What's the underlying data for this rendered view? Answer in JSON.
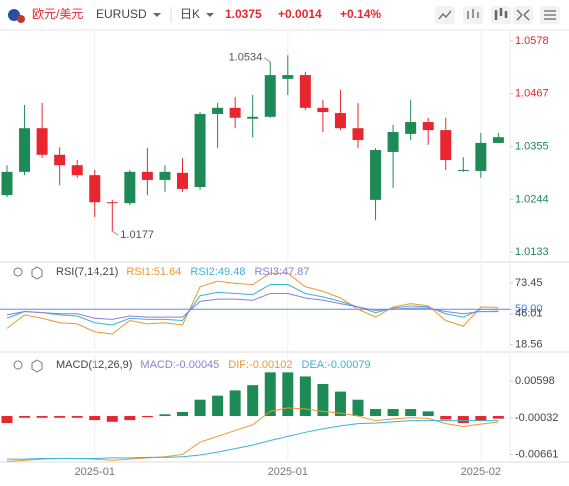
{
  "header": {
    "pair": "欧元/美元",
    "symbol": "EURUSD",
    "period": "日K",
    "price": "1.0375",
    "change": "+0.0014",
    "change_pct": "+0.14%"
  },
  "chart_data": [
    {
      "type": "candlestick",
      "up_color": "#1e8a55",
      "down_color": "#e8262f",
      "categories": [
        null,
        null,
        null,
        null,
        null,
        "2025-01",
        null,
        null,
        null,
        null,
        null,
        null,
        null,
        null,
        null,
        null,
        "2025-01",
        null,
        null,
        null,
        null,
        null,
        null,
        null,
        null,
        null,
        null,
        "2025-02",
        null
      ],
      "open": [
        1.0253,
        1.0302,
        1.0394,
        1.0338,
        1.0316,
        1.0295,
        1.0238,
        1.0236,
        1.0302,
        1.0285,
        1.03,
        1.027,
        1.0424,
        1.0437,
        1.0414,
        1.0418,
        1.0498,
        1.0506,
        1.0437,
        1.0426,
        1.0394,
        1.0243,
        1.0344,
        1.0382,
        1.0407,
        1.039,
        1.0304,
        1.0304,
        1.0363
      ],
      "high": [
        1.0316,
        1.0443,
        1.0447,
        1.0354,
        1.0327,
        1.0306,
        1.0243,
        1.0306,
        1.0352,
        1.0316,
        1.0331,
        1.0428,
        1.0447,
        1.046,
        1.0464,
        1.0534,
        1.0548,
        1.0513,
        1.0454,
        1.0475,
        1.0447,
        1.0352,
        1.0401,
        1.0454,
        1.0416,
        1.0416,
        1.0333,
        1.0384,
        1.0384
      ],
      "low": [
        1.0249,
        1.0295,
        1.0331,
        1.0274,
        1.0289,
        1.0207,
        1.0177,
        1.0232,
        1.0253,
        1.026,
        1.026,
        1.0264,
        1.0352,
        1.0394,
        1.0375,
        1.0416,
        1.0464,
        1.0432,
        1.0386,
        1.039,
        1.0352,
        1.02,
        1.0268,
        1.0369,
        1.0359,
        1.0306,
        1.0302,
        1.0289,
        1.0363
      ],
      "close": [
        1.0302,
        1.0394,
        1.0338,
        1.0316,
        1.0295,
        1.0238,
        1.0236,
        1.0302,
        1.0285,
        1.0302,
        1.0266,
        1.0424,
        1.0437,
        1.0416,
        1.0418,
        1.0506,
        1.0506,
        1.0437,
        1.0428,
        1.0394,
        1.0369,
        1.0348,
        1.0386,
        1.0407,
        1.039,
        1.0327,
        1.0306,
        1.0363,
        1.0375
      ],
      "extremes": [
        1.0534,
        1.0177
      ],
      "ylim": [
        1.0112,
        1.0601
      ],
      "yticks": [
        1.0578,
        1.0467,
        1.0355,
        1.0244,
        1.0133
      ]
    },
    {
      "type": "line",
      "title": "RSI(7,14,21)",
      "ylim": [
        12,
        92
      ],
      "yticks": [
        73.45,
        {
          "value": 50,
          "label": "50.00"
        },
        46.01,
        18.56
      ],
      "hlines": [
        50
      ],
      "series": [
        {
          "name": "RSI1:51.64",
          "color": "#f0962e",
          "values": [
            33,
            45,
            42,
            38,
            37,
            30,
            28,
            40,
            37,
            38,
            36,
            70,
            75,
            73,
            72,
            82,
            82,
            70,
            66,
            60,
            50,
            43,
            52,
            55,
            53,
            40,
            35,
            52,
            51.64
          ]
        },
        {
          "name": "RSI2:49.48",
          "color": "#3bb4d6",
          "values": [
            42,
            48,
            47,
            45,
            44,
            38,
            36,
            42,
            41,
            41,
            40,
            62,
            65,
            64,
            63,
            72,
            72,
            64,
            61,
            57,
            52,
            47,
            51,
            53,
            52,
            46,
            43,
            50,
            49.48
          ]
        },
        {
          "name": "RSI3:47.87",
          "color": "#8b7fd0",
          "values": [
            45,
            48,
            47,
            46,
            46,
            42,
            41,
            44,
            43,
            43,
            43,
            57,
            59,
            59,
            58,
            64,
            64,
            60,
            58,
            55,
            52,
            49,
            50,
            51,
            51,
            48,
            46,
            48,
            47.87
          ]
        }
      ]
    },
    {
      "type": "macd",
      "title": "MACD(12,26,9)",
      "ylim": [
        -0.0079,
        0.011
      ],
      "yticks": [
        0.00598,
        -0.00032,
        -0.00661
      ],
      "up_color": "#1e8a55",
      "down_color": "#e8262f",
      "series": [
        {
          "name": "MACD:-0.00045",
          "color": "#8b7fd0",
          "kind": "bar",
          "values": [
            -0.0012,
            -0.0003,
            -0.0003,
            -0.0003,
            -0.0003,
            -0.0007,
            -0.001,
            -0.0007,
            -0.0002,
            0.0003,
            0.0007,
            0.0028,
            0.0035,
            0.0044,
            0.0053,
            0.0075,
            0.0075,
            0.0068,
            0.0055,
            0.0042,
            0.0028,
            0.0012,
            0.0012,
            0.0012,
            0.0008,
            -0.0006,
            -0.0012,
            -0.0008,
            -0.00045
          ]
        },
        {
          "name": "DIF:-0.00102",
          "color": "#f0962e",
          "kind": "line",
          "values": [
            -0.0078,
            -0.0076,
            -0.0074,
            -0.0073,
            -0.0073,
            -0.0074,
            -0.0076,
            -0.0074,
            -0.0072,
            -0.007,
            -0.0066,
            -0.0045,
            -0.0035,
            -0.0025,
            -0.0015,
            0.0008,
            0.0014,
            0.0012,
            0.0008,
            0.0005,
            0,
            -0.0008,
            -0.0005,
            -0.0003,
            -0.0004,
            -0.0013,
            -0.0018,
            -0.0014,
            -0.00102
          ]
        },
        {
          "name": "DEA:-0.00079",
          "color": "#3bb4d6",
          "kind": "line",
          "values": [
            -0.0074,
            -0.0074,
            -0.0073,
            -0.0073,
            -0.0073,
            -0.0073,
            -0.0072,
            -0.0072,
            -0.0071,
            -0.0071,
            -0.007,
            -0.0067,
            -0.0062,
            -0.0056,
            -0.005,
            -0.0042,
            -0.0035,
            -0.0028,
            -0.0022,
            -0.0017,
            -0.0013,
            -0.0012,
            -0.001,
            -0.0008,
            -0.0008,
            -0.0008,
            -0.0008,
            -0.0008,
            -0.00079
          ]
        }
      ]
    }
  ]
}
